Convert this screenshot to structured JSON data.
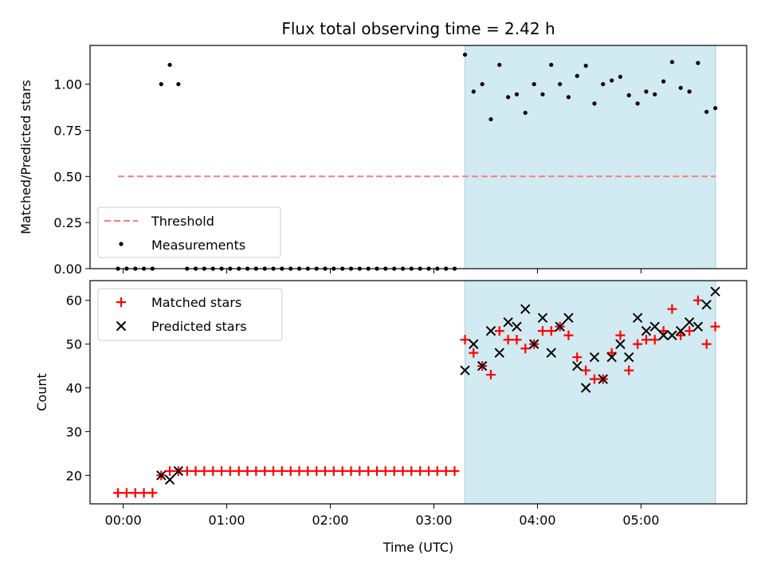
{
  "chart_data": [
    {
      "type": "scatter",
      "title": "Flux total observing time = 2.42 h",
      "xlabel": "",
      "ylabel": "Matched/Predicted stars",
      "ylim": [
        0,
        1.21
      ],
      "yticks": [
        0.0,
        0.25,
        0.5,
        0.75,
        1.0
      ],
      "ytick_labels": [
        "0.00",
        "0.25",
        "0.50",
        "0.75",
        "1.00"
      ],
      "xlim_hours": [
        -0.32,
        6.02
      ],
      "shaded_interval_hours": [
        3.3,
        5.72
      ],
      "shade_color": "#add8e6",
      "threshold": {
        "name": "Threshold",
        "y": 0.5,
        "x_range_hours": [
          -0.05,
          5.72
        ],
        "color": "#f08080",
        "style": "dashed"
      },
      "legend": {
        "position": "lower-left",
        "entries": [
          "Threshold",
          "Measurements"
        ]
      },
      "series": [
        {
          "name": "Measurements",
          "color": "#000000",
          "marker": "dot",
          "x_hours": [
            -0.05,
            0.033,
            0.117,
            0.2,
            0.283,
            0.367,
            0.45,
            0.533,
            0.617,
            0.7,
            0.783,
            0.867,
            0.95,
            1.033,
            1.117,
            1.2,
            1.283,
            1.367,
            1.45,
            1.533,
            1.617,
            1.7,
            1.783,
            1.867,
            1.95,
            2.033,
            2.117,
            2.2,
            2.283,
            2.367,
            2.45,
            2.533,
            2.617,
            2.7,
            2.783,
            2.867,
            2.95,
            3.033,
            3.117,
            3.2,
            3.3,
            3.383,
            3.467,
            3.55,
            3.633,
            3.717,
            3.8,
            3.883,
            3.967,
            4.05,
            4.133,
            4.217,
            4.3,
            4.383,
            4.467,
            4.55,
            4.633,
            4.717,
            4.8,
            4.883,
            4.967,
            5.05,
            5.133,
            5.217,
            5.3,
            5.383,
            5.467,
            5.55,
            5.633,
            5.717
          ],
          "values": [
            0,
            0,
            0,
            0,
            0,
            1.0,
            1.105,
            1.0,
            0,
            0,
            0,
            0,
            0,
            0,
            0,
            0,
            0,
            0,
            0,
            0,
            0,
            0,
            0,
            0,
            0,
            0,
            0,
            0,
            0,
            0,
            0,
            0,
            0,
            0,
            0,
            0,
            0,
            0,
            0,
            0,
            1.16,
            0.96,
            1.0,
            0.81,
            1.105,
            0.93,
            0.945,
            0.845,
            1.0,
            0.945,
            1.105,
            1.0,
            0.93,
            1.045,
            1.1,
            0.895,
            1.0,
            1.02,
            1.04,
            0.94,
            0.895,
            0.96,
            0.945,
            1.015,
            1.12,
            0.98,
            0.96,
            1.115,
            0.85,
            0.87
          ]
        }
      ]
    },
    {
      "type": "scatter",
      "title": "",
      "xlabel": "Time (UTC)",
      "ylabel": "Count",
      "ylim": [
        13.5,
        64.5
      ],
      "yticks": [
        20,
        30,
        40,
        50,
        60
      ],
      "ytick_labels": [
        "20",
        "30",
        "40",
        "50",
        "60"
      ],
      "xticks_hours": [
        0,
        1,
        2,
        3,
        4,
        5
      ],
      "xtick_labels": [
        "00:00",
        "01:00",
        "02:00",
        "03:00",
        "04:00",
        "05:00"
      ],
      "xlim_hours": [
        -0.32,
        6.02
      ],
      "shaded_interval_hours": [
        3.3,
        5.72
      ],
      "shade_color": "#add8e6",
      "legend": {
        "position": "upper-left",
        "entries": [
          "Matched stars",
          "Predicted stars"
        ]
      },
      "series": [
        {
          "name": "Matched stars",
          "color": "#ff0000",
          "marker": "plus",
          "x_hours": [
            -0.05,
            0.033,
            0.117,
            0.2,
            0.283,
            0.367,
            0.45,
            0.533,
            0.617,
            0.7,
            0.783,
            0.867,
            0.95,
            1.033,
            1.117,
            1.2,
            1.283,
            1.367,
            1.45,
            1.533,
            1.617,
            1.7,
            1.783,
            1.867,
            1.95,
            2.033,
            2.117,
            2.2,
            2.283,
            2.367,
            2.45,
            2.533,
            2.617,
            2.7,
            2.783,
            2.867,
            2.95,
            3.033,
            3.117,
            3.2,
            3.3,
            3.383,
            3.467,
            3.55,
            3.633,
            3.717,
            3.8,
            3.883,
            3.967,
            4.05,
            4.133,
            4.217,
            4.3,
            4.383,
            4.467,
            4.55,
            4.633,
            4.717,
            4.8,
            4.883,
            4.967,
            5.05,
            5.133,
            5.217,
            5.3,
            5.383,
            5.467,
            5.55,
            5.633,
            5.717
          ],
          "values": [
            16,
            16,
            16,
            16,
            16,
            20,
            21,
            21,
            21,
            21,
            21,
            21,
            21,
            21,
            21,
            21,
            21,
            21,
            21,
            21,
            21,
            21,
            21,
            21,
            21,
            21,
            21,
            21,
            21,
            21,
            21,
            21,
            21,
            21,
            21,
            21,
            21,
            21,
            21,
            21,
            51,
            48,
            45,
            43,
            53,
            51,
            51,
            49,
            50,
            53,
            53,
            54,
            52,
            47,
            44,
            42,
            42,
            48,
            52,
            44,
            50,
            51,
            51,
            53,
            58,
            52,
            53,
            60,
            50,
            54
          ]
        },
        {
          "name": "Predicted stars",
          "color": "#000000",
          "marker": "x",
          "x_hours": [
            0.367,
            0.45,
            0.533,
            3.3,
            3.383,
            3.467,
            3.55,
            3.633,
            3.717,
            3.8,
            3.883,
            3.967,
            4.05,
            4.133,
            4.217,
            4.3,
            4.383,
            4.467,
            4.55,
            4.633,
            4.717,
            4.8,
            4.883,
            4.967,
            5.05,
            5.133,
            5.217,
            5.3,
            5.383,
            5.467,
            5.55,
            5.633,
            5.717
          ],
          "values": [
            20,
            19,
            21,
            44,
            50,
            45,
            53,
            48,
            55,
            54,
            58,
            50,
            56,
            48,
            54,
            56,
            45,
            40,
            47,
            42,
            47,
            50,
            47,
            56,
            53,
            54,
            52,
            52,
            53,
            55,
            54,
            59,
            62
          ]
        }
      ]
    }
  ]
}
